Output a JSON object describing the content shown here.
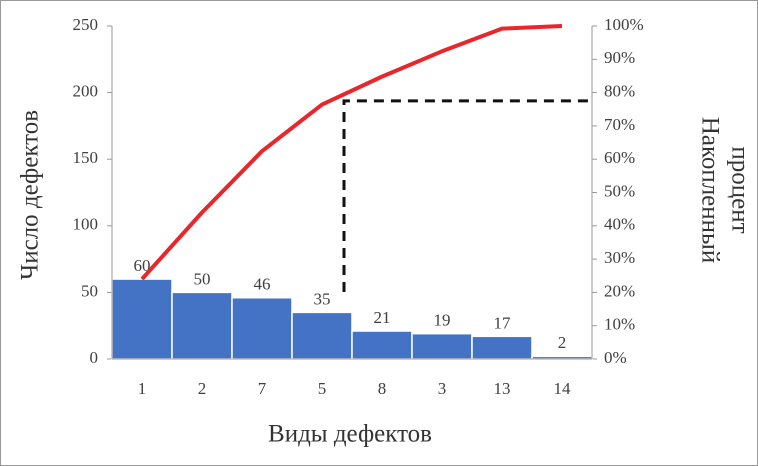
{
  "chart_data": {
    "type": "pareto",
    "xlabel": "Виды дефектов",
    "ylabel": "Число дефектов",
    "y2label": [
      "Накопленный",
      "процент"
    ],
    "categories": [
      "1",
      "2",
      "7",
      "5",
      "8",
      "3",
      "13",
      "14"
    ],
    "series": [
      {
        "type": "bar",
        "color": "#4472c4",
        "values": [
          60,
          50,
          46,
          35,
          21,
          19,
          17,
          2
        ],
        "data_labels": true
      },
      {
        "type": "line",
        "color": "#e8262b",
        "axis": "y2",
        "values": [
          24,
          44,
          62.4,
          76.4,
          84.8,
          92.4,
          99.2,
          100
        ]
      }
    ],
    "cutoff": 77.5,
    "ylim": [
      0,
      250
    ],
    "yticks": [
      0,
      50,
      100,
      150,
      200,
      250
    ],
    "y2lim": [
      0,
      100
    ],
    "y2ticks": [
      {
        "value": 0,
        "label": "0%"
      },
      {
        "value": 10,
        "label": "10%"
      },
      {
        "value": 20,
        "label": "20%"
      },
      {
        "value": 30,
        "label": "30%"
      },
      {
        "value": 40,
        "label": "40%"
      },
      {
        "value": 50,
        "label": "50%"
      },
      {
        "value": 60,
        "label": "60%"
      },
      {
        "value": 70,
        "label": "70%"
      },
      {
        "value": 80,
        "label": "80%"
      },
      {
        "value": 90,
        "label": "90%"
      },
      {
        "value": 100,
        "label": "100%"
      }
    ]
  }
}
